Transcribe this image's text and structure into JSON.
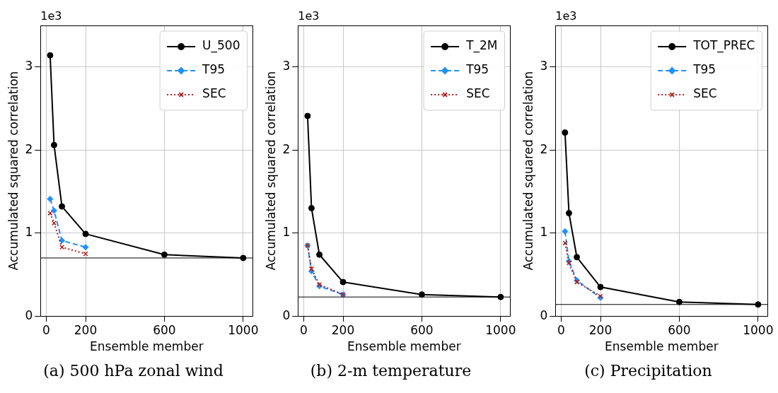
{
  "chart_data": [
    {
      "type": "line",
      "title": "(a) 500 hPa zonal wind",
      "xlabel": "Ensemble member",
      "ylabel": "Accumulated squared correlation",
      "annotations": [
        "1e3"
      ],
      "xlim": [
        -29,
        1049
      ],
      "ylim": [
        0,
        3.5
      ],
      "xticks": [
        0,
        200,
        600,
        1000
      ],
      "yticks": [
        0,
        1,
        2,
        3
      ],
      "grid": true,
      "legend": "top right",
      "ref_lines": [
        {
          "axis": "y",
          "value": 0.7,
          "color": "#000000"
        }
      ],
      "series": [
        {
          "name": "U_500",
          "color": "#000000",
          "marker": "circle",
          "line_style": "solid",
          "x": [
            20,
            40,
            80,
            200,
            600,
            1000
          ],
          "values": [
            3.14,
            2.06,
            1.32,
            0.99,
            0.74,
            0.7
          ]
        },
        {
          "name": "T95",
          "color": "#1e90ff",
          "marker": "diamond",
          "line_style": "dashed",
          "x": [
            20,
            40,
            80,
            200
          ],
          "values": [
            1.41,
            1.27,
            0.91,
            0.83
          ]
        },
        {
          "name": "SEC",
          "color": "#b22222",
          "marker": "cross",
          "line_style": "dotted",
          "x": [
            20,
            40,
            80,
            200
          ],
          "values": [
            1.24,
            1.12,
            0.83,
            0.75
          ]
        }
      ]
    },
    {
      "type": "line",
      "title": "(b) 2-m temperature",
      "xlabel": "Ensemble member",
      "ylabel": "Accumulated squared correlation",
      "annotations": [
        "1e3"
      ],
      "xlim": [
        -29,
        1049
      ],
      "ylim": [
        0,
        3.5
      ],
      "xticks": [
        0,
        200,
        600,
        1000
      ],
      "yticks": [
        0,
        1,
        2,
        3
      ],
      "grid": true,
      "legend": "top right",
      "ref_lines": [
        {
          "axis": "y",
          "value": 0.23,
          "color": "#000000"
        }
      ],
      "series": [
        {
          "name": "T_2M",
          "color": "#000000",
          "marker": "circle",
          "line_style": "solid",
          "x": [
            20,
            40,
            80,
            200,
            600,
            1000
          ],
          "values": [
            2.41,
            1.3,
            0.74,
            0.41,
            0.26,
            0.23
          ]
        },
        {
          "name": "T95",
          "color": "#1e90ff",
          "marker": "diamond",
          "line_style": "dashed",
          "x": [
            20,
            40,
            80,
            200
          ],
          "values": [
            0.85,
            0.54,
            0.36,
            0.26
          ]
        },
        {
          "name": "SEC",
          "color": "#b22222",
          "marker": "cross",
          "line_style": "dotted",
          "x": [
            20,
            40,
            80,
            200
          ],
          "values": [
            0.85,
            0.57,
            0.38,
            0.26
          ]
        }
      ]
    },
    {
      "type": "line",
      "title": "(c) Precipitation",
      "xlabel": "Ensemble member",
      "ylabel": "Accumulated squared correlation",
      "annotations": [
        "1e3"
      ],
      "xlim": [
        -29,
        1049
      ],
      "ylim": [
        0,
        3.5
      ],
      "xticks": [
        0,
        200,
        600,
        1000
      ],
      "yticks": [
        0,
        1,
        2,
        3
      ],
      "grid": true,
      "legend": "top right",
      "ref_lines": [
        {
          "axis": "y",
          "value": 0.14,
          "color": "#000000"
        }
      ],
      "series": [
        {
          "name": "TOT_PREC",
          "color": "#000000",
          "marker": "circle",
          "line_style": "solid",
          "x": [
            20,
            40,
            80,
            200,
            600,
            1000
          ],
          "values": [
            2.21,
            1.24,
            0.71,
            0.35,
            0.17,
            0.14
          ]
        },
        {
          "name": "T95",
          "color": "#1e90ff",
          "marker": "diamond",
          "line_style": "dashed",
          "x": [
            20,
            40,
            80,
            200
          ],
          "values": [
            1.02,
            0.66,
            0.43,
            0.22
          ]
        },
        {
          "name": "SEC",
          "color": "#b22222",
          "marker": "cross",
          "line_style": "dotted",
          "x": [
            20,
            40,
            80,
            200
          ],
          "values": [
            0.88,
            0.64,
            0.41,
            0.24
          ]
        }
      ]
    }
  ]
}
